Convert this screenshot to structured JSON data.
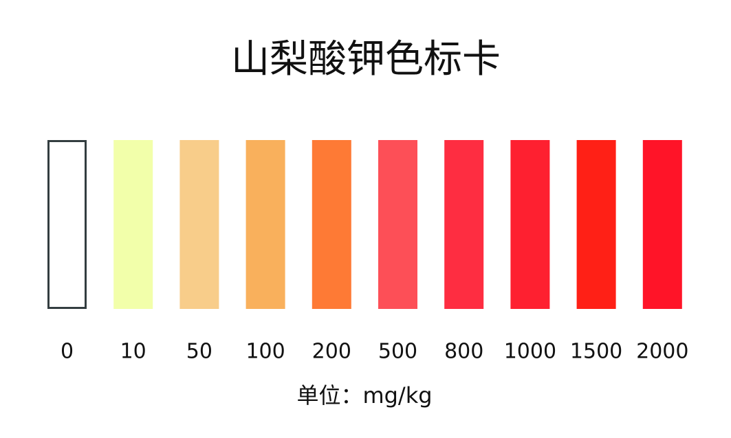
{
  "title": "山梨酸钾色标卡",
  "swatches": [
    {
      "label": 0,
      "color": "#ffffff",
      "border": "#333d40"
    },
    {
      "label": 10,
      "color": "#f2ffaa"
    },
    {
      "label": 50,
      "color": "#f8cd8a"
    },
    {
      "label": 100,
      "color": "#f9b05c"
    },
    {
      "label": 200,
      "color": "#fe7a35"
    },
    {
      "label": 500,
      "color": "#fd4f57"
    },
    {
      "label": 800,
      "color": "#fe2d41"
    },
    {
      "label": 1000,
      "color": "#fe2030"
    },
    {
      "label": 1500,
      "color": "#ff2016"
    },
    {
      "label": 2000,
      "color": "#ff1428"
    }
  ],
  "unit": "单位：mg/kg"
}
